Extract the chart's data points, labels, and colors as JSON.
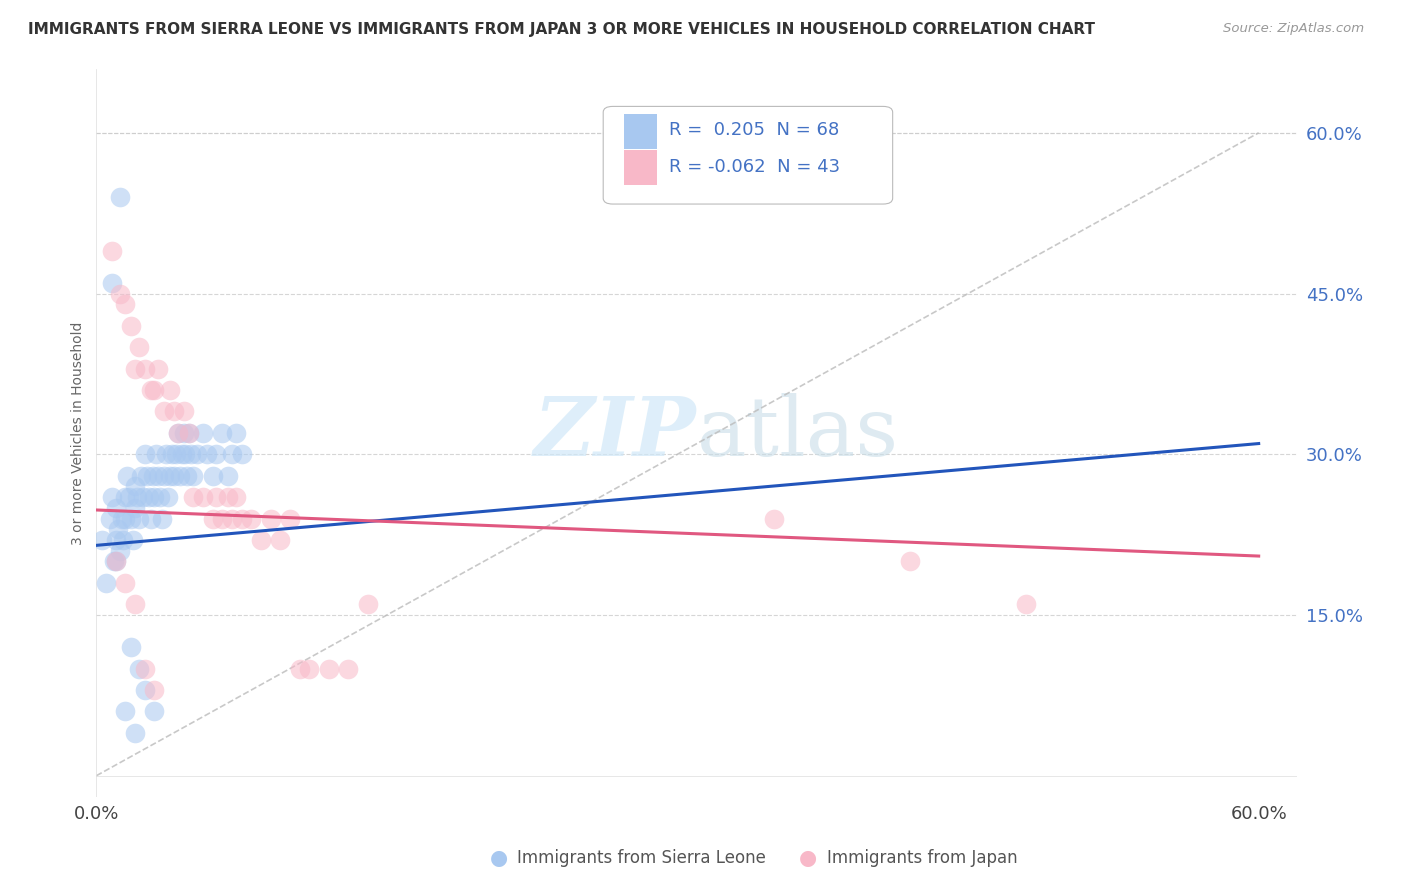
{
  "title": "IMMIGRANTS FROM SIERRA LEONE VS IMMIGRANTS FROM JAPAN 3 OR MORE VEHICLES IN HOUSEHOLD CORRELATION CHART",
  "source": "Source: ZipAtlas.com",
  "ylabel": "3 or more Vehicles in Household",
  "xlim": [
    0.0,
    0.62
  ],
  "ylim": [
    -0.02,
    0.66
  ],
  "ytick_positions": [
    0.15,
    0.3,
    0.45,
    0.6
  ],
  "ytick_labels": [
    "15.0%",
    "30.0%",
    "45.0%",
    "60.0%"
  ],
  "sierra_leone_color": "#a8c8f0",
  "sierra_leone_edge": "#7aaad8",
  "japan_color": "#f8b8c8",
  "japan_edge": "#e888a8",
  "trendline_sierra_color": "#2255bb",
  "trendline_japan_color": "#e05880",
  "diag_color": "#bbbbbb",
  "background_color": "#ffffff",
  "grid_color": "#cccccc",
  "watermark_color": "#d0e8f8",
  "sl_x": [
    0.003,
    0.005,
    0.007,
    0.008,
    0.009,
    0.01,
    0.01,
    0.01,
    0.011,
    0.012,
    0.013,
    0.014,
    0.015,
    0.015,
    0.016,
    0.017,
    0.018,
    0.019,
    0.02,
    0.02,
    0.021,
    0.022,
    0.023,
    0.024,
    0.025,
    0.026,
    0.027,
    0.028,
    0.029,
    0.03,
    0.031,
    0.032,
    0.033,
    0.034,
    0.035,
    0.036,
    0.037,
    0.038,
    0.039,
    0.04,
    0.041,
    0.042,
    0.043,
    0.044,
    0.045,
    0.046,
    0.047,
    0.048,
    0.049,
    0.05,
    0.052,
    0.055,
    0.057,
    0.06,
    0.062,
    0.065,
    0.068,
    0.07,
    0.072,
    0.075,
    0.008,
    0.012,
    0.015,
    0.02,
    0.025,
    0.03,
    0.018,
    0.022
  ],
  "sl_y": [
    0.22,
    0.18,
    0.24,
    0.26,
    0.2,
    0.25,
    0.22,
    0.2,
    0.23,
    0.21,
    0.24,
    0.22,
    0.26,
    0.24,
    0.28,
    0.26,
    0.24,
    0.22,
    0.27,
    0.25,
    0.26,
    0.24,
    0.28,
    0.26,
    0.3,
    0.28,
    0.26,
    0.24,
    0.28,
    0.26,
    0.3,
    0.28,
    0.26,
    0.24,
    0.28,
    0.3,
    0.26,
    0.28,
    0.3,
    0.28,
    0.3,
    0.32,
    0.28,
    0.3,
    0.32,
    0.3,
    0.28,
    0.32,
    0.3,
    0.28,
    0.3,
    0.32,
    0.3,
    0.28,
    0.3,
    0.32,
    0.28,
    0.3,
    0.32,
    0.3,
    0.46,
    0.54,
    0.06,
    0.04,
    0.08,
    0.06,
    0.12,
    0.1
  ],
  "jp_x": [
    0.008,
    0.012,
    0.015,
    0.018,
    0.02,
    0.022,
    0.025,
    0.028,
    0.03,
    0.032,
    0.035,
    0.038,
    0.04,
    0.042,
    0.045,
    0.048,
    0.05,
    0.055,
    0.06,
    0.062,
    0.065,
    0.068,
    0.07,
    0.072,
    0.075,
    0.08,
    0.085,
    0.09,
    0.095,
    0.1,
    0.105,
    0.11,
    0.12,
    0.13,
    0.14,
    0.35,
    0.42,
    0.48,
    0.01,
    0.015,
    0.02,
    0.025,
    0.03
  ],
  "jp_y": [
    0.49,
    0.45,
    0.44,
    0.42,
    0.38,
    0.4,
    0.38,
    0.36,
    0.36,
    0.38,
    0.34,
    0.36,
    0.34,
    0.32,
    0.34,
    0.32,
    0.26,
    0.26,
    0.24,
    0.26,
    0.24,
    0.26,
    0.24,
    0.26,
    0.24,
    0.24,
    0.22,
    0.24,
    0.22,
    0.24,
    0.1,
    0.1,
    0.1,
    0.1,
    0.16,
    0.24,
    0.2,
    0.16,
    0.2,
    0.18,
    0.16,
    0.1,
    0.08
  ],
  "sl_trend_x0": 0.0,
  "sl_trend_y0": 0.215,
  "sl_trend_x1": 0.6,
  "sl_trend_y1": 0.31,
  "jp_trend_x0": 0.0,
  "jp_trend_y0": 0.248,
  "jp_trend_x1": 0.6,
  "jp_trend_y1": 0.205
}
